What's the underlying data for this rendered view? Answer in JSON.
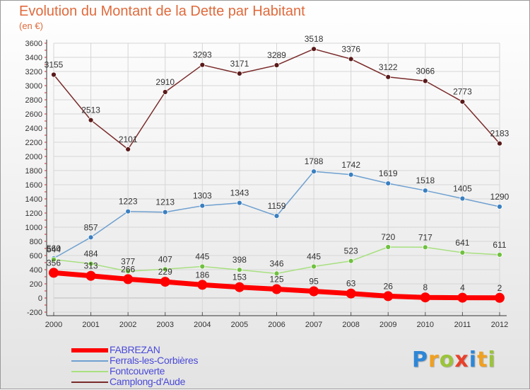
{
  "header": {
    "title": "Evolution du Montant de la Dette par Habitant",
    "subtitle": "(en €)"
  },
  "logo": {
    "text": "Proxiti",
    "letters": [
      "P",
      "r",
      "o",
      "x",
      "i",
      "t",
      "i"
    ],
    "colors": [
      "#2e86d6",
      "#f0a020",
      "#9bc43a",
      "#e8402a",
      "#2e86d6",
      "#f0a020",
      "#9bc43a"
    ]
  },
  "chart_data": {
    "type": "line",
    "title": "Evolution du Montant de la Dette par Habitant",
    "subtitle": "(en €)",
    "xlabel": "",
    "ylabel": "",
    "x": [
      "2000",
      "2001",
      "2002",
      "2003",
      "2004",
      "2005",
      "2006",
      "2007",
      "2008",
      "2009",
      "2010",
      "2011",
      "2012"
    ],
    "ylim": [
      -200,
      3600
    ],
    "yticks": [
      -200,
      0,
      200,
      400,
      600,
      800,
      1000,
      1200,
      1400,
      1600,
      1800,
      2000,
      2200,
      2400,
      2600,
      2800,
      3000,
      3200,
      3400,
      3600
    ],
    "grid": true,
    "legend_position": "bottom-left",
    "series": [
      {
        "name": "FABREZAN",
        "values": [
          356,
          313,
          266,
          229,
          186,
          153,
          125,
          95,
          63,
          26,
          8,
          4,
          2
        ],
        "labels": [
          "356",
          "313",
          "266",
          "229",
          "186",
          "153",
          "125",
          "95",
          "63",
          "26",
          "8",
          "4",
          "2"
        ],
        "color": "#ff0000",
        "marker_color": "#ff0000"
      },
      {
        "name": "Ferrals-les-Corbières",
        "values": [
          560,
          857,
          1223,
          1213,
          1303,
          1343,
          1159,
          1788,
          1742,
          1619,
          1518,
          1405,
          1290
        ],
        "labels": [
          "560",
          "857",
          "1223",
          "1213",
          "1303",
          "1343",
          "1159",
          "1788",
          "1742",
          "1619",
          "1518",
          "1405",
          "1290"
        ],
        "color": "#6fa0d0",
        "marker_color": "#3a7fc0"
      },
      {
        "name": "Fontcouverte",
        "values": [
          544,
          484,
          377,
          407,
          445,
          398,
          346,
          445,
          523,
          720,
          717,
          641,
          611
        ],
        "labels": [
          "544",
          "484",
          "377",
          "407",
          "445",
          "398",
          "346",
          "445",
          "523",
          "720",
          "717",
          "641",
          "611"
        ],
        "color": "#a8e080",
        "marker_color": "#70c040"
      },
      {
        "name": "Camplong-d'Aude",
        "values": [
          3155,
          2513,
          2101,
          2910,
          3293,
          3171,
          3289,
          3518,
          3376,
          3122,
          3066,
          2773,
          2183
        ],
        "labels": [
          "3155",
          "2513",
          "2101",
          "2910",
          "3293",
          "3171",
          "3289",
          "3518",
          "3376",
          "3122",
          "3066",
          "2773",
          "2183"
        ],
        "color": "#7a2a2a",
        "marker_color": "#5a1a1a"
      }
    ]
  }
}
